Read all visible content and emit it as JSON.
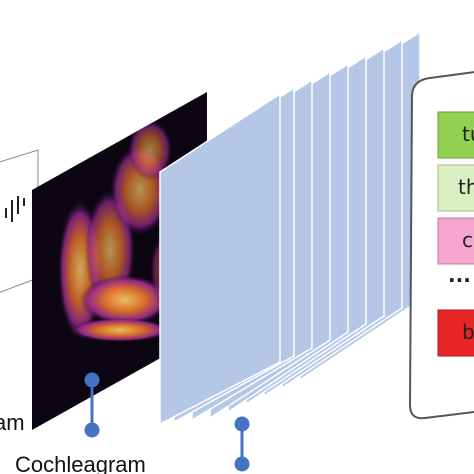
{
  "labels": {
    "waveform": "am",
    "cochleagram": "Cochleagram"
  },
  "outputs": [
    "tu",
    "th",
    "c",
    "b"
  ],
  "ellipsis": "..."
}
